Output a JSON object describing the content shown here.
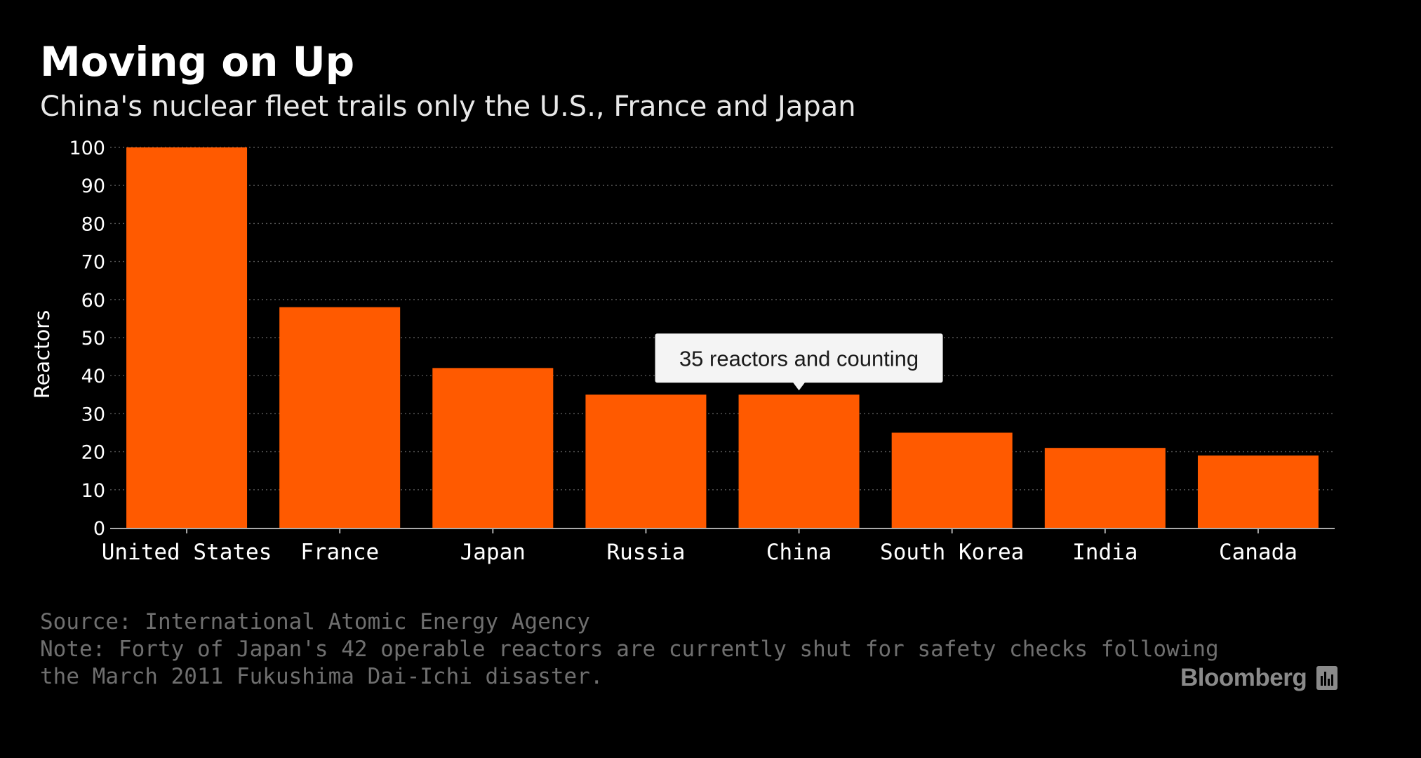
{
  "header": {
    "title": "Moving on Up",
    "subtitle": "China's nuclear fleet trails only the U.S., France and Japan"
  },
  "chart_data": {
    "type": "bar",
    "categories": [
      "United States",
      "France",
      "Japan",
      "Russia",
      "China",
      "South Korea",
      "India",
      "Canada"
    ],
    "values": [
      100,
      58,
      42,
      35,
      35,
      25,
      21,
      19
    ],
    "ylabel": "Reactors",
    "xlabel": "",
    "ylim": [
      0,
      100
    ],
    "yticks": [
      0,
      10,
      20,
      30,
      40,
      50,
      60,
      70,
      80,
      90,
      100
    ],
    "grid": true,
    "bar_color": "#ff5a00",
    "annotation": {
      "text": "35 reactors and counting",
      "target_category": "China"
    }
  },
  "footer": {
    "source": "Source: International Atomic Energy Agency",
    "note_line1": "Note: Forty of Japan's 42 operable reactors are currently shut for safety checks following",
    "note_line2": "the March 2011 Fukushima Dai-Ichi disaster.",
    "brand": "Bloomberg",
    "brand_icon": "bloomberg-bars-icon"
  }
}
